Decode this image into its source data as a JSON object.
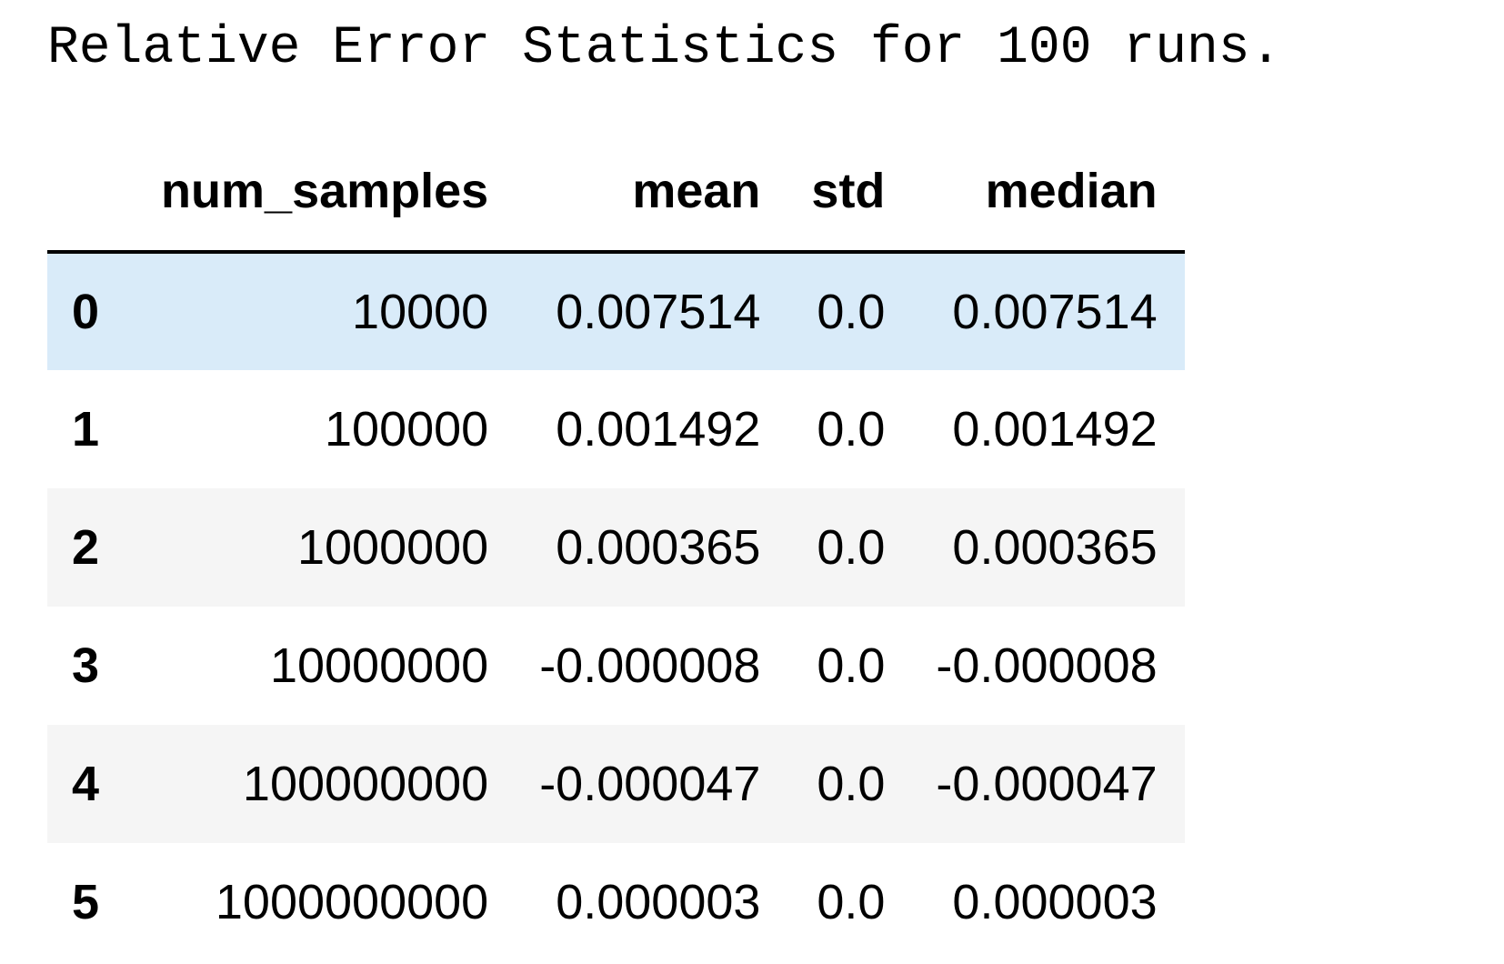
{
  "caption": "Relative Error Statistics for 100 runs.",
  "table": {
    "index_header": "",
    "columns": [
      "num_samples",
      "mean",
      "std",
      "median"
    ],
    "rows": [
      {
        "index": "0",
        "num_samples": "10000",
        "mean": "0.007514",
        "std": "0.0",
        "median": "0.007514"
      },
      {
        "index": "1",
        "num_samples": "100000",
        "mean": "0.001492",
        "std": "0.0",
        "median": "0.001492"
      },
      {
        "index": "2",
        "num_samples": "1000000",
        "mean": "0.000365",
        "std": "0.0",
        "median": "0.000365"
      },
      {
        "index": "3",
        "num_samples": "10000000",
        "mean": "-0.000008",
        "std": "0.0",
        "median": "-0.000008"
      },
      {
        "index": "4",
        "num_samples": "100000000",
        "mean": "-0.000047",
        "std": "0.0",
        "median": "-0.000047"
      },
      {
        "index": "5",
        "num_samples": "1000000000",
        "mean": "0.000003",
        "std": "0.0",
        "median": "0.000003"
      }
    ]
  },
  "colors": {
    "hover_row": "#d9ebf9",
    "stripe_row": "#f5f5f5",
    "header_rule": "#000000"
  }
}
